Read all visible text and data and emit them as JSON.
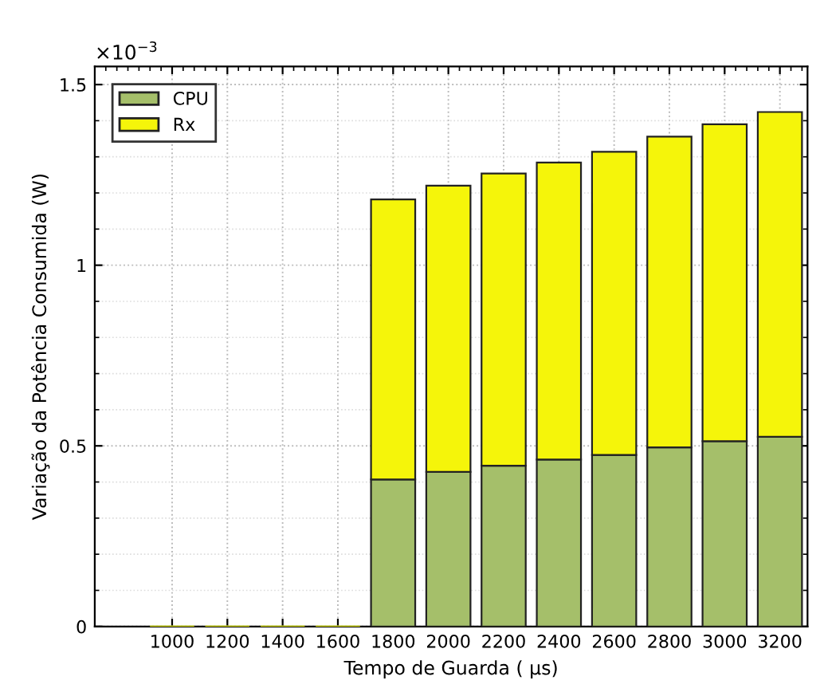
{
  "chart_data": {
    "type": "bar",
    "stacked": true,
    "xlabel": "Tempo de Guarda ( μs)",
    "ylabel": "Variação da Potência Consumida (W)",
    "categories": [
      "1000",
      "1200",
      "1400",
      "1600",
      "1800",
      "2000",
      "2200",
      "2400",
      "2600",
      "2800",
      "3000",
      "3200"
    ],
    "series": [
      {
        "name": "CPU",
        "color": "#a5bf6a",
        "values": [
          0,
          0,
          0,
          0,
          0.407,
          0.428,
          0.445,
          0.462,
          0.475,
          0.496,
          0.513,
          0.525
        ]
      },
      {
        "name": "Rx",
        "color": "#f5f50a",
        "values": [
          0,
          0,
          0,
          0,
          0.775,
          0.792,
          0.809,
          0.822,
          0.839,
          0.86,
          0.877,
          0.899
        ]
      }
    ],
    "ylim": [
      0,
      1.55
    ],
    "yticks": [
      0,
      0.5,
      1,
      1.5
    ],
    "annotations": [
      "×10$^{−3}$"
    ],
    "grid": true,
    "legend": "top left"
  }
}
